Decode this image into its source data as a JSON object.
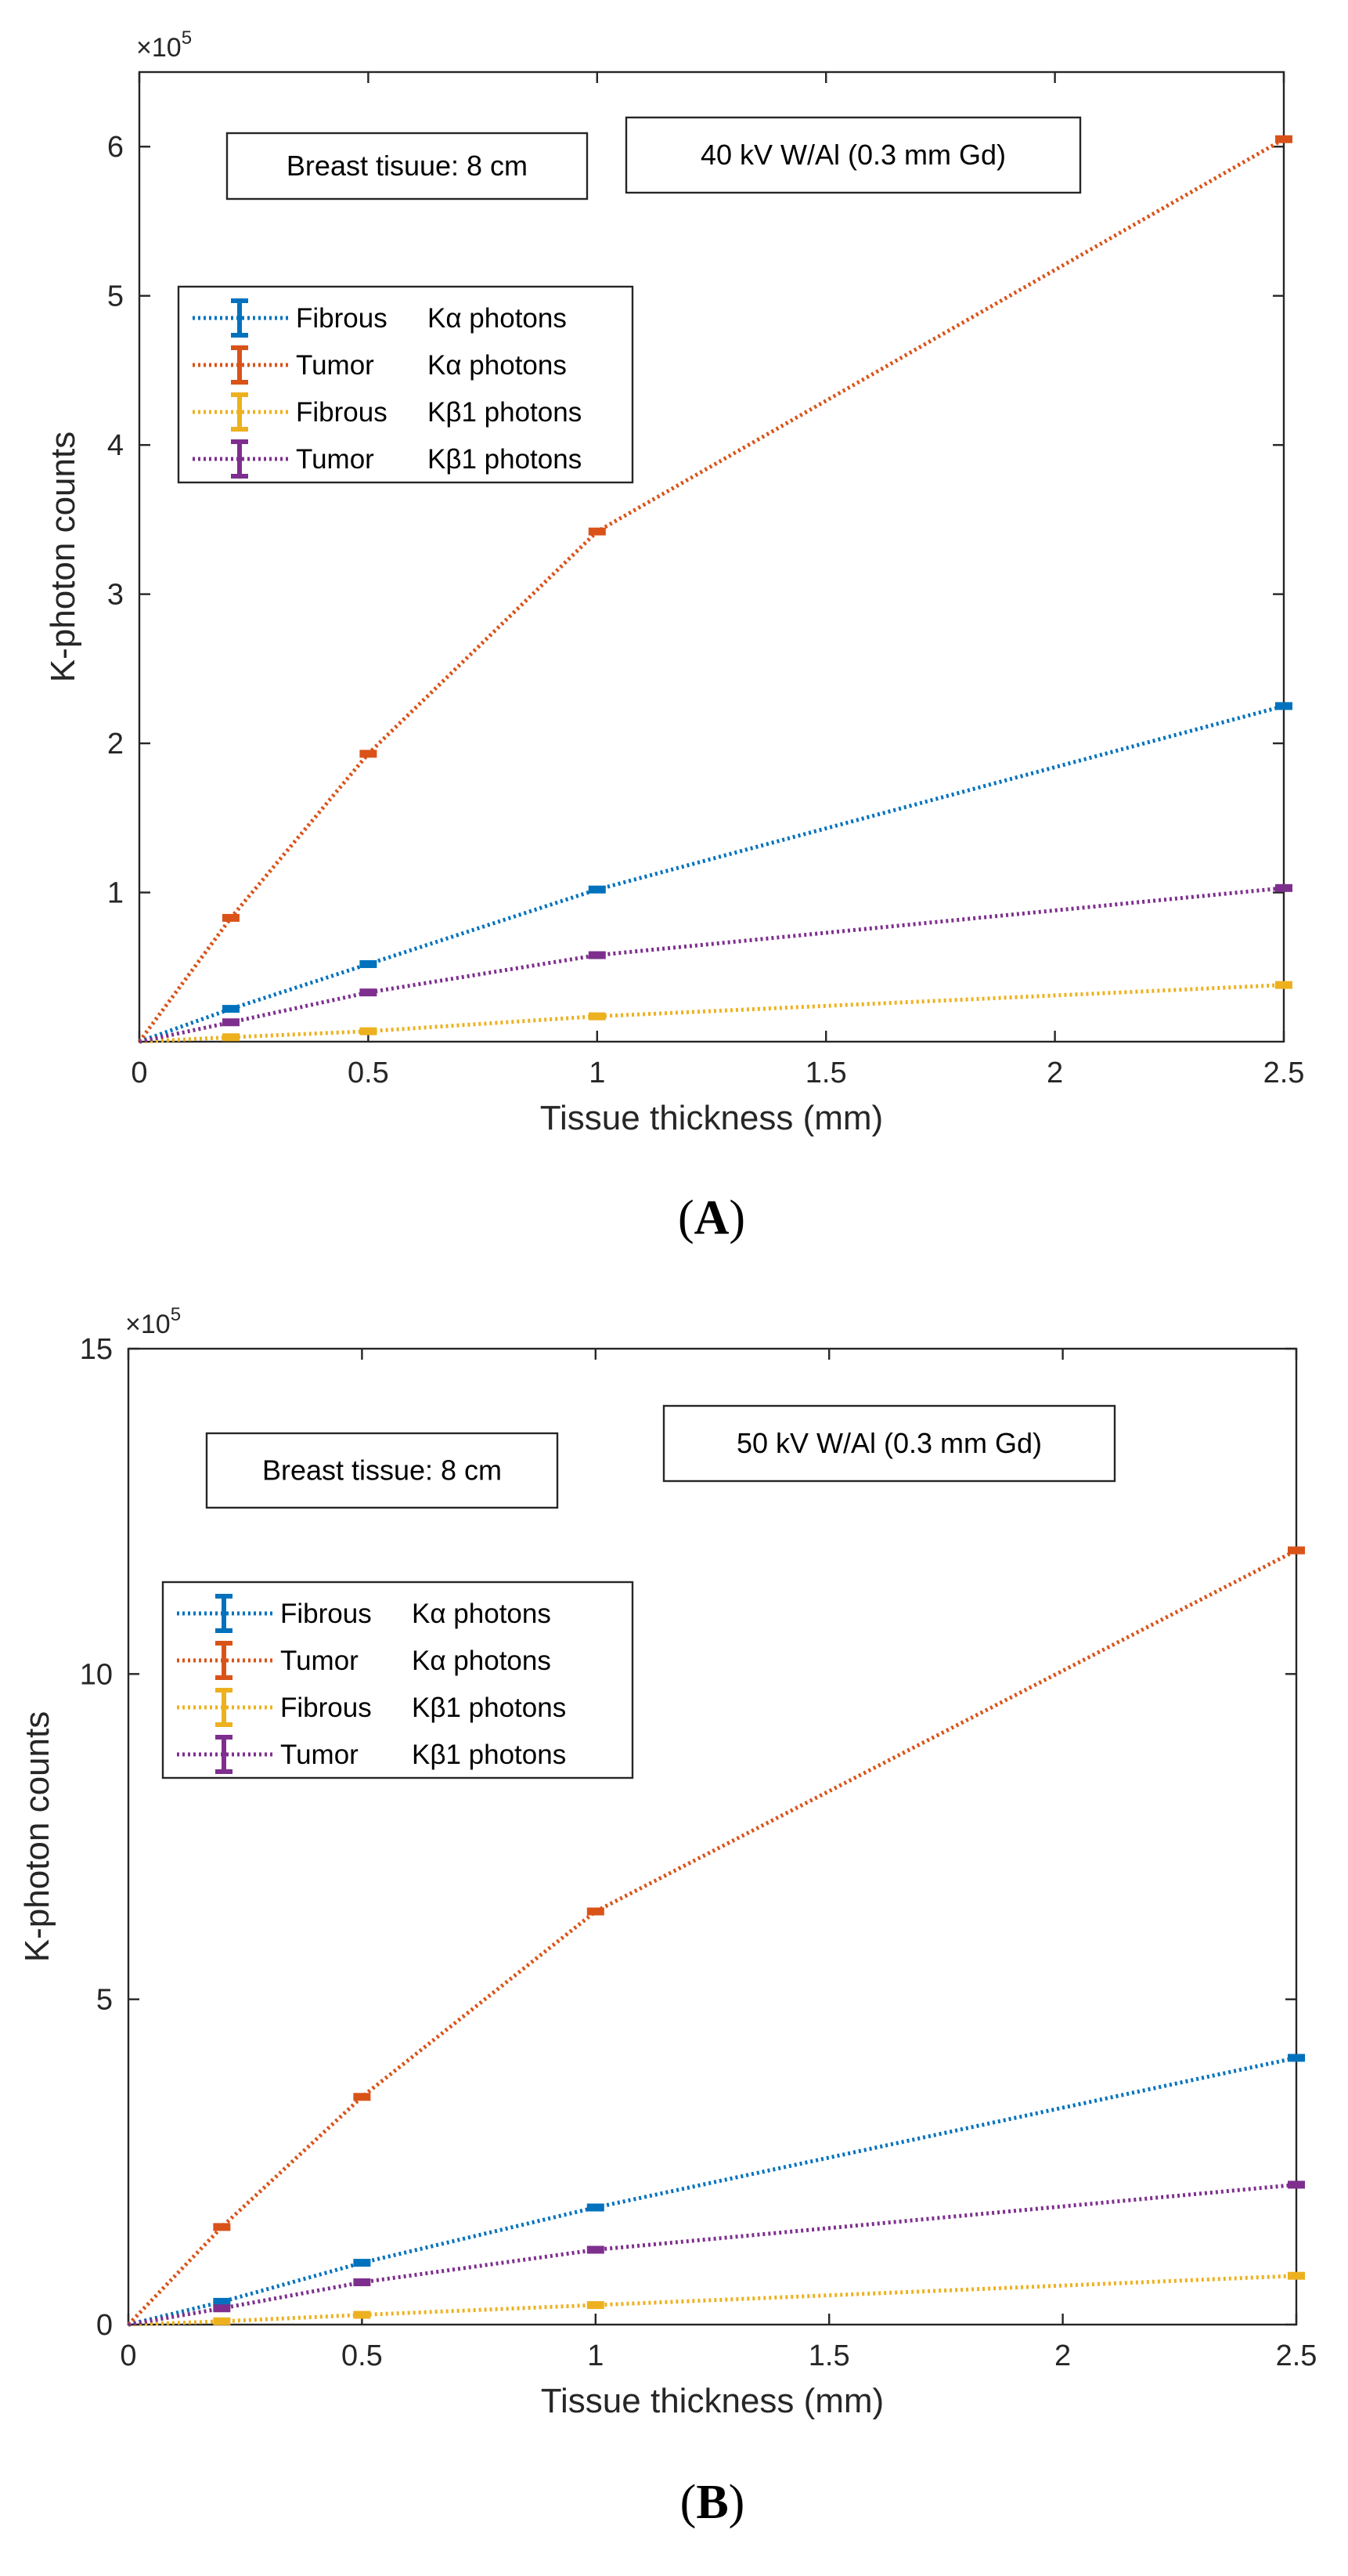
{
  "chart_data": [
    {
      "type": "line",
      "panel_label_open": "(",
      "panel_label_letter": "A",
      "panel_label_close": ")",
      "xlabel": "Tissue thickness (mm)",
      "ylabel": "K-photon counts",
      "y_multiplier_base": "×10",
      "y_multiplier_exp": "5",
      "xlim": [
        0,
        2.5
      ],
      "ylim": [
        0,
        6.5
      ],
      "xticks": [
        0,
        0.5,
        1,
        1.5,
        2,
        2.5
      ],
      "xtick_labels": [
        "0",
        "0.5",
        "1",
        "1.5",
        "2",
        "2.5"
      ],
      "yticks": [
        1,
        2,
        3,
        4,
        5,
        6
      ],
      "ytick_labels": [
        "1",
        "2",
        "3",
        "4",
        "5",
        "6"
      ],
      "annotations": [
        "Breast tisuue: 8 cm",
        "40 kV W/Al (0.3 mm Gd)"
      ],
      "legend_position": "upper-left",
      "x": [
        0,
        0.2,
        0.5,
        1,
        2.5
      ],
      "series": [
        {
          "name": "Fibrous",
          "desc": "Kα photons",
          "color": "#0072BD",
          "values": [
            0,
            0.22,
            0.52,
            1.02,
            2.25
          ]
        },
        {
          "name": "Tumor",
          "desc": "Kα photons",
          "color": "#D95319",
          "values": [
            0,
            0.83,
            1.93,
            3.42,
            6.05
          ]
        },
        {
          "name": "Fibrous",
          "desc": "Kβ1 photons",
          "color": "#EDB120",
          "values": [
            0,
            0.03,
            0.07,
            0.17,
            0.38
          ]
        },
        {
          "name": "Tumor",
          "desc": "Kβ1 photons",
          "color": "#7E2F8E",
          "values": [
            0,
            0.13,
            0.33,
            0.58,
            1.03
          ]
        }
      ]
    },
    {
      "type": "line",
      "panel_label_open": "(",
      "panel_label_letter": "B",
      "panel_label_close": ")",
      "xlabel": "Tissue thickness (mm)",
      "ylabel": "K-photon counts",
      "y_multiplier_base": "×10",
      "y_multiplier_exp": "5",
      "xlim": [
        0,
        2.5
      ],
      "ylim": [
        0,
        15
      ],
      "xticks": [
        0,
        0.5,
        1,
        1.5,
        2,
        2.5
      ],
      "xtick_labels": [
        "0",
        "0.5",
        "1",
        "1.5",
        "2",
        "2.5"
      ],
      "yticks": [
        0,
        5,
        10,
        15
      ],
      "ytick_labels": [
        "0",
        "5",
        "10",
        "15"
      ],
      "annotations": [
        "Breast tissue: 8 cm",
        "50 kV W/Al (0.3 mm Gd)"
      ],
      "legend_position": "upper-left",
      "x": [
        0,
        0.2,
        0.5,
        1,
        2.5
      ],
      "series": [
        {
          "name": "Fibrous",
          "desc": "Kα photons",
          "color": "#0072BD",
          "values": [
            0,
            0.35,
            0.95,
            1.8,
            4.1
          ]
        },
        {
          "name": "Tumor",
          "desc": "Kα photons",
          "color": "#D95319",
          "values": [
            0,
            1.5,
            3.5,
            6.35,
            11.9
          ]
        },
        {
          "name": "Fibrous",
          "desc": "Kβ1 photons",
          "color": "#EDB120",
          "values": [
            0,
            0.05,
            0.15,
            0.3,
            0.75
          ]
        },
        {
          "name": "Tumor",
          "desc": "Kβ1 photons",
          "color": "#7E2F8E",
          "values": [
            0,
            0.25,
            0.65,
            1.15,
            2.15
          ]
        }
      ]
    }
  ]
}
